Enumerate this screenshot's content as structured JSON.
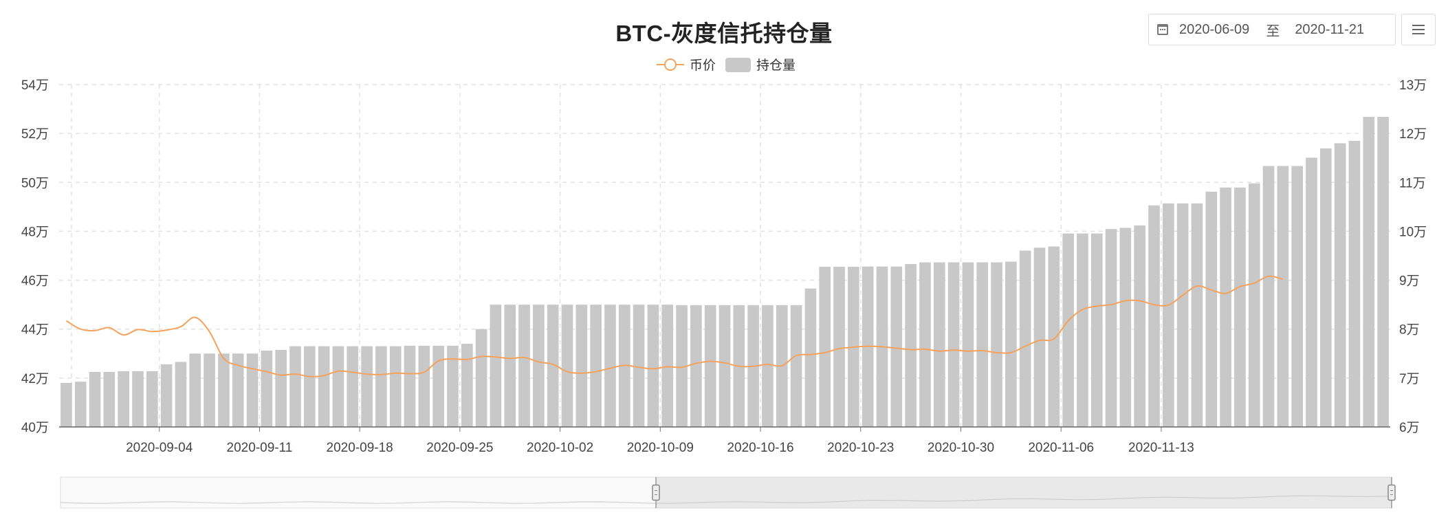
{
  "chart_data": {
    "type": "bar",
    "title": "BTC-灰度信托持仓量",
    "legend": {
      "placement": "top-center",
      "entries": [
        "币价",
        "持仓量"
      ]
    },
    "x_tick_labels": [
      "2020-09-04",
      "2020-09-11",
      "2020-09-18",
      "2020-09-25",
      "2020-10-02",
      "2020-10-09",
      "2020-10-16",
      "2020-10-23",
      "2020-10-30",
      "2020-11-06",
      "2020-11-13"
    ],
    "x": [
      "2020-08-28",
      "2020-08-29",
      "2020-08-30",
      "2020-08-31",
      "2020-09-01",
      "2020-09-02",
      "2020-09-03",
      "2020-09-04",
      "2020-09-05",
      "2020-09-06",
      "2020-09-07",
      "2020-09-08",
      "2020-09-09",
      "2020-09-10",
      "2020-09-11",
      "2020-09-12",
      "2020-09-13",
      "2020-09-14",
      "2020-09-15",
      "2020-09-16",
      "2020-09-17",
      "2020-09-18",
      "2020-09-19",
      "2020-09-20",
      "2020-09-21",
      "2020-09-22",
      "2020-09-23",
      "2020-09-24",
      "2020-09-25",
      "2020-09-26",
      "2020-09-27",
      "2020-09-28",
      "2020-09-29",
      "2020-09-30",
      "2020-10-01",
      "2020-10-02",
      "2020-10-03",
      "2020-10-04",
      "2020-10-05",
      "2020-10-06",
      "2020-10-07",
      "2020-10-08",
      "2020-10-09",
      "2020-10-10",
      "2020-10-11",
      "2020-10-12",
      "2020-10-13",
      "2020-10-14",
      "2020-10-15",
      "2020-10-16",
      "2020-10-17",
      "2020-10-18",
      "2020-10-19",
      "2020-10-20",
      "2020-10-21",
      "2020-10-22",
      "2020-10-23",
      "2020-10-24",
      "2020-10-25",
      "2020-10-26",
      "2020-10-27",
      "2020-10-28",
      "2020-10-29",
      "2020-10-30",
      "2020-10-31",
      "2020-11-01",
      "2020-11-02",
      "2020-11-03",
      "2020-11-04",
      "2020-11-05",
      "2020-11-06",
      "2020-11-07",
      "2020-11-08",
      "2020-11-09",
      "2020-11-10",
      "2020-11-11",
      "2020-11-12",
      "2020-11-13",
      "2020-11-14",
      "2020-11-15",
      "2020-11-16",
      "2020-11-17",
      "2020-11-18",
      "2020-11-19",
      "2020-11-20",
      "2020-11-21"
    ],
    "series": [
      {
        "name": "持仓量",
        "type": "bar",
        "axis": "left",
        "color": "#c8c8c8",
        "values": [
          418000,
          418500,
          422500,
          422500,
          422800,
          422800,
          422800,
          425600,
          426600,
          430000,
          430000,
          430000,
          430000,
          430000,
          431200,
          431500,
          433000,
          433000,
          433000,
          433000,
          433000,
          433000,
          433000,
          433000,
          433200,
          433200,
          433200,
          433200,
          434000,
          440000,
          450000,
          450000,
          450000,
          450000,
          450000,
          450000,
          450000,
          450000,
          450000,
          450000,
          450000,
          450000,
          450000,
          449800,
          449800,
          449800,
          449800,
          449800,
          449800,
          449800,
          449800,
          449800,
          456600,
          465500,
          465500,
          465500,
          465600,
          465600,
          465600,
          466600,
          467300,
          467300,
          467300,
          467300,
          467300,
          467300,
          467600,
          472100,
          473300,
          473800,
          479100,
          479100,
          479100,
          480900,
          481400,
          482400,
          490600,
          491400,
          491400,
          491400,
          496200,
          497900,
          497900,
          499600,
          506700,
          506700
        ],
        "values_tail": [
          506700,
          510100,
          513900,
          516000,
          517000,
          526800,
          526800
        ]
      },
      {
        "name": "币价",
        "type": "line",
        "axis": "right",
        "color": "#f5a25c",
        "values": [
          81700,
          80000,
          79700,
          80300,
          78800,
          79900,
          79500,
          79800,
          80500,
          82400,
          79500,
          74000,
          72600,
          71900,
          71300,
          70600,
          70800,
          70300,
          70500,
          71400,
          71200,
          70800,
          70700,
          71000,
          70900,
          71200,
          73500,
          73900,
          73800,
          74400,
          74300,
          74000,
          74200,
          73300,
          72800,
          71300,
          71000,
          71300,
          72000,
          72600,
          72200,
          71900,
          72300,
          72200,
          73000,
          73400,
          73100,
          72400,
          72400,
          72800,
          72500,
          74600,
          74800,
          75200,
          76000,
          76300,
          76500,
          76400,
          76100,
          75800,
          75900,
          75500,
          75700,
          75500,
          75600,
          75200,
          75200,
          76500,
          77700,
          78000,
          81700,
          84000,
          84700,
          85000,
          85800,
          85800,
          85000,
          84900,
          86900,
          88800,
          88000,
          87300,
          88700,
          89400,
          90800,
          90200
        ]
      }
    ],
    "left_axis": {
      "min": 400000,
      "max": 540000,
      "tick_labels": [
        "40万",
        "42万",
        "44万",
        "46万",
        "48万",
        "50万",
        "52万",
        "54万"
      ]
    },
    "right_axis": {
      "min": 60000,
      "max": 130000,
      "tick_labels": [
        "6万",
        "7万",
        "8万",
        "9万",
        "10万",
        "11万",
        "12万",
        "13万"
      ]
    },
    "grid": true,
    "datazoom": {
      "range_start": "2020-06-09",
      "range_end": "2020-11-21"
    }
  },
  "date_picker": {
    "start": "2020-06-09",
    "separator": "至",
    "end": "2020-11-21"
  }
}
